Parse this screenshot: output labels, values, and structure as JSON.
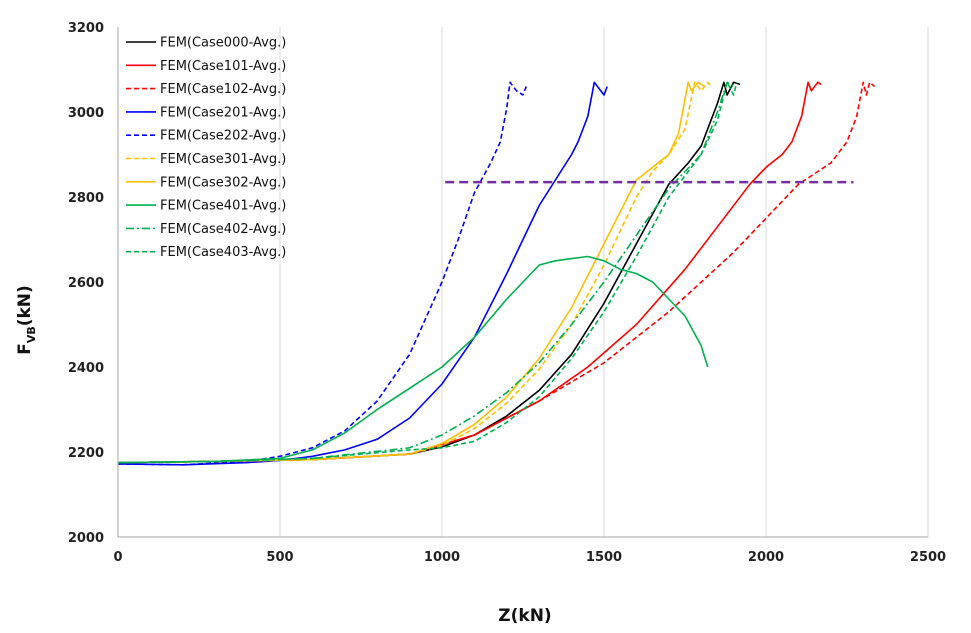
{
  "chart_data": {
    "type": "line",
    "xlabel": "Z(kN)",
    "ylabel_main": "F",
    "ylabel_sub": "VB",
    "ylabel_unit": "(kN)",
    "xlim": [
      0,
      2500
    ],
    "ylim": [
      2000,
      3200
    ],
    "xticks": [
      0,
      500,
      1000,
      1500,
      2000,
      2500
    ],
    "yticks": [
      2000,
      2200,
      2400,
      2600,
      2800,
      3000,
      3200
    ],
    "grid": "vertical",
    "legend_position": "top-left",
    "reference_line": {
      "y": 2835,
      "x_start": 1010,
      "x_end": 2270,
      "color": "#7030a0"
    },
    "series": [
      {
        "name": "FEM(Case000-Avg.)",
        "color": "#000000",
        "dash": "solid",
        "x": [
          0,
          300,
          600,
          900,
          1000,
          1100,
          1200,
          1300,
          1400,
          1500,
          1600,
          1700,
          1760,
          1800,
          1850,
          1870,
          1880,
          1900,
          1920
        ],
        "y": [
          2175,
          2178,
          2182,
          2195,
          2212,
          2240,
          2285,
          2345,
          2430,
          2550,
          2690,
          2830,
          2880,
          2920,
          3020,
          3070,
          3040,
          3070,
          3065
        ]
      },
      {
        "name": "FEM(Case101-Avg.)",
        "color": "#ff0000",
        "dash": "solid",
        "x": [
          0,
          300,
          600,
          900,
          1100,
          1300,
          1450,
          1600,
          1750,
          1850,
          1950,
          2000,
          2050,
          2080,
          2110,
          2130,
          2140,
          2160,
          2170
        ],
        "y": [
          2175,
          2178,
          2182,
          2195,
          2240,
          2320,
          2400,
          2500,
          2630,
          2730,
          2830,
          2870,
          2900,
          2930,
          2990,
          3070,
          3050,
          3070,
          3065
        ]
      },
      {
        "name": "FEM(Case102-Avg.)",
        "color": "#ff0000",
        "dash": "dash",
        "x": [
          0,
          300,
          600,
          900,
          1100,
          1300,
          1500,
          1700,
          1900,
          2000,
          2100,
          2200,
          2250,
          2280,
          2300,
          2310,
          2320,
          2335
        ],
        "y": [
          2175,
          2178,
          2182,
          2195,
          2240,
          2320,
          2410,
          2530,
          2670,
          2750,
          2830,
          2880,
          2930,
          2990,
          3070,
          3040,
          3070,
          3060
        ]
      },
      {
        "name": "FEM(Case201-Avg.)",
        "color": "#0000ff",
        "dash": "solid",
        "x": [
          0,
          200,
          400,
          500,
          600,
          700,
          800,
          900,
          1000,
          1100,
          1200,
          1300,
          1350,
          1400,
          1420,
          1450,
          1470,
          1480,
          1500,
          1510
        ],
        "y": [
          2172,
          2170,
          2175,
          2180,
          2190,
          2205,
          2230,
          2280,
          2360,
          2470,
          2620,
          2780,
          2840,
          2900,
          2930,
          2990,
          3070,
          3060,
          3040,
          3060
        ]
      },
      {
        "name": "FEM(Case202-Avg.)",
        "color": "#0000ff",
        "dash": "dash",
        "x": [
          0,
          200,
          400,
          500,
          600,
          700,
          800,
          900,
          1000,
          1050,
          1100,
          1150,
          1180,
          1200,
          1210,
          1230,
          1250,
          1260
        ],
        "y": [
          2172,
          2170,
          2178,
          2190,
          2210,
          2250,
          2320,
          2430,
          2600,
          2700,
          2810,
          2880,
          2930,
          3010,
          3070,
          3050,
          3040,
          3060
        ]
      },
      {
        "name": "FEM(Case301-Avg.)",
        "color": "#ffc000",
        "dash": "dash",
        "x": [
          0,
          300,
          600,
          900,
          1000,
          1100,
          1200,
          1300,
          1400,
          1500,
          1600,
          1650,
          1700,
          1750,
          1780,
          1800,
          1820,
          1830
        ],
        "y": [
          2175,
          2178,
          2182,
          2195,
          2215,
          2255,
          2315,
          2395,
          2500,
          2640,
          2800,
          2860,
          2900,
          2960,
          3070,
          3050,
          3070,
          3060
        ]
      },
      {
        "name": "FEM(Case302-Avg.)",
        "color": "#ffc000",
        "dash": "solid",
        "x": [
          0,
          300,
          600,
          900,
          1000,
          1100,
          1200,
          1300,
          1400,
          1500,
          1600,
          1650,
          1700,
          1730,
          1760,
          1770,
          1790,
          1810
        ],
        "y": [
          2175,
          2178,
          2182,
          2195,
          2220,
          2265,
          2330,
          2420,
          2540,
          2690,
          2840,
          2870,
          2900,
          2950,
          3070,
          3050,
          3070,
          3060
        ]
      },
      {
        "name": "FEM(Case401-Avg.)",
        "color": "#00b050",
        "dash": "solid",
        "x": [
          0,
          300,
          500,
          600,
          700,
          800,
          900,
          1000,
          1100,
          1200,
          1300,
          1350,
          1400,
          1450,
          1500,
          1550,
          1600,
          1650,
          1700,
          1750,
          1800,
          1820
        ],
        "y": [
          2175,
          2178,
          2185,
          2205,
          2245,
          2300,
          2350,
          2400,
          2470,
          2560,
          2640,
          2650,
          2655,
          2660,
          2650,
          2630,
          2620,
          2600,
          2560,
          2520,
          2450,
          2400
        ]
      },
      {
        "name": "FEM(Case402-Avg.)",
        "color": "#00b050",
        "dash": "dashdot",
        "x": [
          0,
          300,
          600,
          900,
          1000,
          1100,
          1200,
          1300,
          1400,
          1500,
          1600,
          1700,
          1750,
          1800,
          1850,
          1880,
          1900
        ],
        "y": [
          2175,
          2178,
          2185,
          2210,
          2240,
          2285,
          2340,
          2410,
          2500,
          2600,
          2710,
          2820,
          2860,
          2900,
          3000,
          3070,
          3060
        ]
      },
      {
        "name": "FEM(Case403-Avg.)",
        "color": "#00b050",
        "dash": "dash",
        "x": [
          0,
          300,
          600,
          900,
          1000,
          1100,
          1200,
          1300,
          1400,
          1500,
          1600,
          1700,
          1800,
          1850,
          1880,
          1900,
          1910
        ],
        "y": [
          2175,
          2178,
          2185,
          2205,
          2210,
          2225,
          2270,
          2330,
          2420,
          2530,
          2660,
          2800,
          2900,
          2980,
          3070,
          3040,
          3070
        ]
      }
    ]
  }
}
